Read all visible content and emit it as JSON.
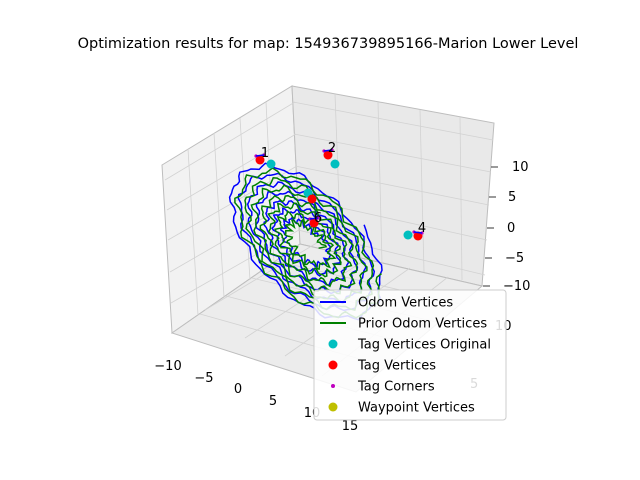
{
  "chart_data": {
    "type": "3d-line-scatter",
    "title": "Optimization results for map: 154936739895166-Marion Lower Level",
    "axes": {
      "x_ticks": [
        "−10",
        "−5",
        "0",
        "5",
        "10",
        "15"
      ],
      "y_ticks": [
        "0",
        "5",
        "10"
      ],
      "z_ticks": [
        "10",
        "5",
        "0",
        "−5",
        "−10"
      ],
      "xlabel": "",
      "ylabel": "",
      "zlabel": "",
      "grid": true
    },
    "legend": {
      "placement": "lower-right",
      "entries": [
        {
          "label": "Odom Vertices",
          "color": "#0000ff",
          "marker": "line"
        },
        {
          "label": "Prior Odom Vertices",
          "color": "#008000",
          "marker": "line"
        },
        {
          "label": "Tag Vertices Original",
          "color": "#00bfbf",
          "marker": "circle"
        },
        {
          "label": "Tag Vertices",
          "color": "#ff0000",
          "marker": "circle"
        },
        {
          "label": "Tag Corners",
          "color": "#bf00bf",
          "marker": "dot"
        },
        {
          "label": "Waypoint Vertices",
          "color": "#bfbf00",
          "marker": "circle"
        }
      ]
    },
    "tags": [
      {
        "label": "1",
        "x": -11,
        "y": 8,
        "z": 10.5
      },
      {
        "label": "2",
        "x": -3,
        "y": 10,
        "z": 10.8
      },
      {
        "label": "4",
        "x": 10,
        "y": 6,
        "z": 0
      },
      {
        "label": "6",
        "x": 2,
        "y": 5,
        "z": 2.5
      }
    ],
    "series": [
      {
        "name": "Odom Vertices",
        "color": "#0000ff",
        "shape": "spiral trajectory"
      },
      {
        "name": "Prior Odom Vertices",
        "color": "#008000",
        "shape": "spiral trajectory"
      }
    ]
  }
}
